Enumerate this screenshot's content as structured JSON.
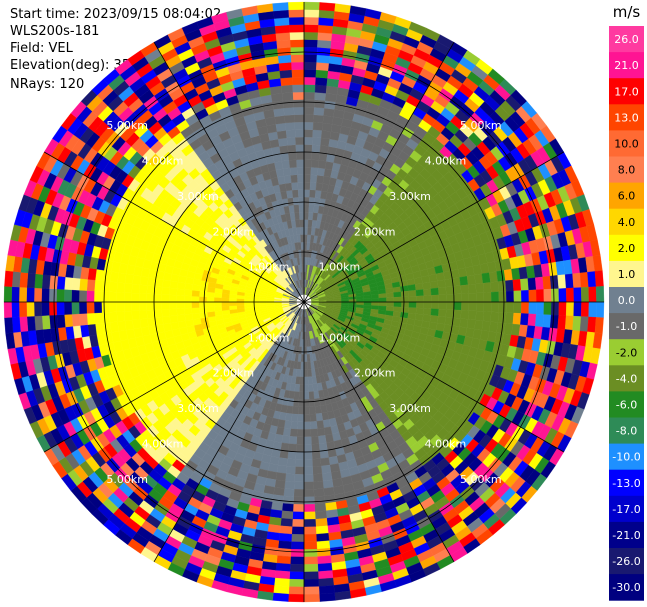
{
  "header": {
    "start_time": "Start time: 2023/09/15 08:04:02",
    "instrument": "WLS200s-181",
    "field": "Field: VEL",
    "elevation": "Elevation(deg): 35.30",
    "nrays": "NRays: 120"
  },
  "colorbar": {
    "unit": "m/s",
    "labels": [
      "26.0",
      "21.0",
      "17.0",
      "13.0",
      "10.0",
      "8.0",
      "6.0",
      "4.0",
      "2.0",
      "1.0",
      "0.0",
      "-1.0",
      "-2.0",
      "-4.0",
      "-6.0",
      "-8.0",
      "-10.0",
      "-13.0",
      "-17.0",
      "-21.0",
      "-26.0",
      "-30.0"
    ],
    "colors": [
      "#ff3aa0",
      "#ff1493",
      "#ff0000",
      "#ff4500",
      "#ff6a33",
      "#ff7f50",
      "#ffa500",
      "#ffd700",
      "#ffff00",
      "#fff68f",
      "#708090",
      "#696969",
      "#9acd32",
      "#6b8e23",
      "#228b22",
      "#2e8b57",
      "#1e90ff",
      "#0000ff",
      "#0000cd",
      "#00008b",
      "#191970",
      "#000080"
    ]
  },
  "chart_data": {
    "type": "heatmap",
    "projection": "polar PPI",
    "field": "VEL",
    "units": "m/s",
    "nrays": 120,
    "max_range_km": 6.0,
    "range_rings_km": [
      1.0,
      2.0,
      3.0,
      4.0,
      5.0
    ],
    "ring_labels": [
      "1.00km",
      "2.00km",
      "3.00km",
      "4.00km",
      "5.00km"
    ],
    "spoke_azimuths_deg": [
      0,
      30,
      60,
      90,
      120,
      150,
      180,
      210,
      240,
      270,
      300,
      330
    ],
    "color_range": [
      -30,
      30
    ],
    "approx_velocity_by_sector": [
      {
        "sector": "west (left half, 0-3 km)",
        "velocity_range_ms": [
          2,
          4
        ],
        "note": "yellow, receding; orange patches ~4-6 m/s near 1.5 km"
      },
      {
        "sector": "east (right half, 0-3.5 km)",
        "velocity_range_ms": [
          -4,
          -1
        ],
        "note": "green, approaching; darker green core ~-4 to -6 m/s near 1 km east"
      },
      {
        "sector": "north/south transition",
        "velocity_range_ms": [
          -1,
          1
        ],
        "note": "grey near-zero band"
      },
      {
        "sector": "beyond ~4 km",
        "velocity_range_ms": [
          -30,
          26
        ],
        "note": "noise, all colors"
      }
    ]
  }
}
